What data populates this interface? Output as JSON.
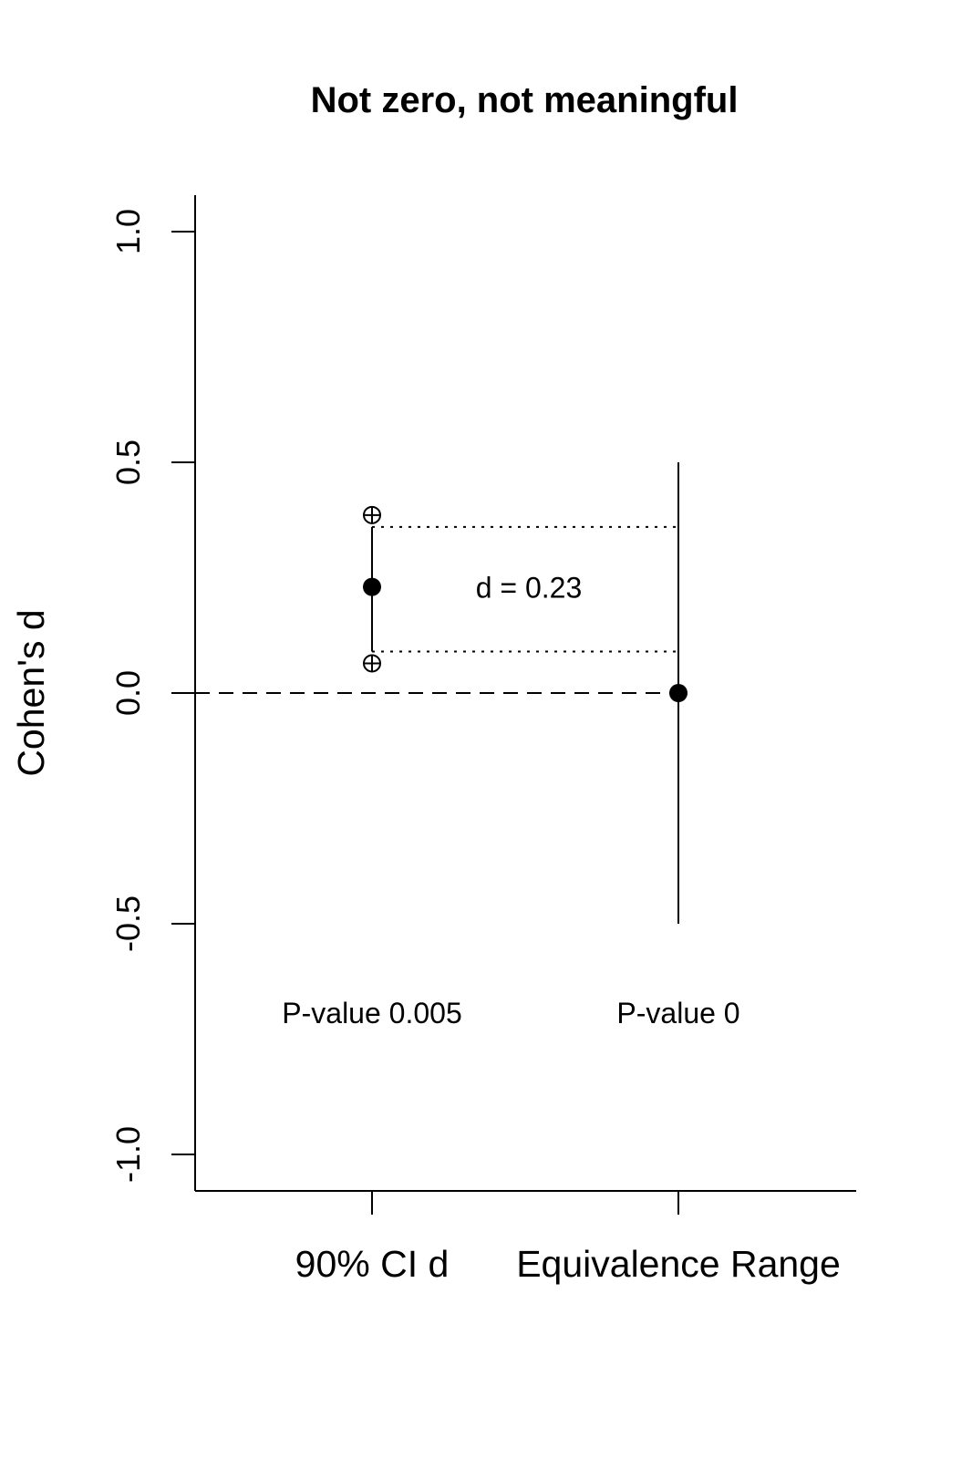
{
  "chart_data": {
    "type": "scatter",
    "title": "Not zero, not meaningful",
    "ylabel": "Cohen's d",
    "xlabel": "",
    "ylim": [
      -1.0,
      1.0
    ],
    "yticks": [
      "-1.0",
      "-0.5",
      "0.0",
      "0.5",
      "1.0"
    ],
    "categories": [
      "90% CI d",
      "Equivalence Range"
    ],
    "estimates": [
      0.23,
      0.0
    ],
    "ci_90": {
      "lower": 0.09,
      "upper": 0.36
    },
    "equivalence_bounds": {
      "lower": -0.5,
      "upper": 0.5
    },
    "reference_line": 0.0,
    "effect_label": "d =  0.23",
    "pvalue_labels": [
      "P-value 0.005",
      "P-value 0"
    ],
    "grid": false,
    "legend": "none"
  }
}
